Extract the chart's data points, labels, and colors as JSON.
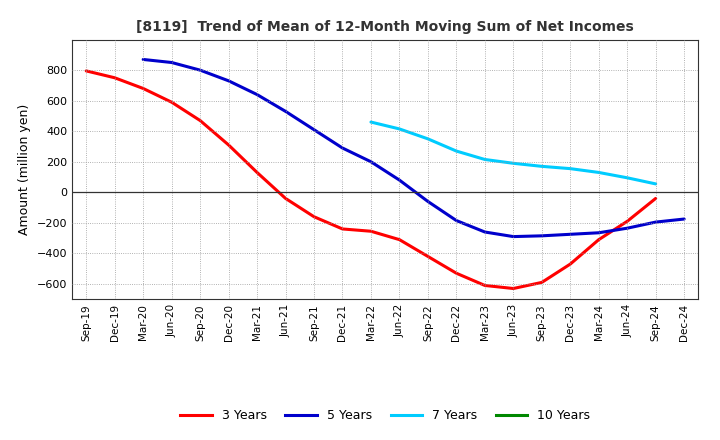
{
  "title": "[8119]  Trend of Mean of 12-Month Moving Sum of Net Incomes",
  "ylabel": "Amount (million yen)",
  "background_color": "#ffffff",
  "grid_color": "#aaaaaa",
  "ylim": [
    -700,
    1000
  ],
  "yticks": [
    -600,
    -400,
    -200,
    0,
    200,
    400,
    600,
    800
  ],
  "x_labels": [
    "Sep-19",
    "Dec-19",
    "Mar-20",
    "Jun-20",
    "Sep-20",
    "Dec-20",
    "Mar-21",
    "Jun-21",
    "Sep-21",
    "Dec-21",
    "Mar-22",
    "Jun-22",
    "Sep-22",
    "Dec-22",
    "Mar-23",
    "Jun-23",
    "Sep-23",
    "Dec-23",
    "Mar-24",
    "Jun-24",
    "Sep-24",
    "Dec-24"
  ],
  "series": {
    "3 Years": {
      "color": "#ff0000",
      "values": [
        795,
        750,
        680,
        590,
        470,
        310,
        130,
        -40,
        -160,
        -240,
        -255,
        -310,
        -420,
        -530,
        -610,
        -630,
        -590,
        -470,
        -310,
        -190,
        -40,
        null
      ]
    },
    "5 Years": {
      "color": "#0000cc",
      "values": [
        null,
        null,
        870,
        850,
        800,
        730,
        640,
        530,
        410,
        290,
        200,
        80,
        -60,
        -185,
        -260,
        -290,
        -285,
        -275,
        -265,
        -235,
        -195,
        -175
      ]
    },
    "7 Years": {
      "color": "#00ccff",
      "values": [
        null,
        null,
        null,
        null,
        null,
        null,
        null,
        null,
        null,
        null,
        460,
        415,
        350,
        270,
        215,
        190,
        170,
        155,
        130,
        95,
        55,
        null
      ]
    },
    "10 Years": {
      "color": "#008800",
      "values": [
        null,
        null,
        null,
        null,
        null,
        null,
        null,
        null,
        null,
        null,
        null,
        null,
        null,
        null,
        null,
        null,
        null,
        null,
        null,
        null,
        null,
        null
      ]
    }
  },
  "legend": {
    "3 Years": "#ff0000",
    "5 Years": "#0000cc",
    "7 Years": "#00ccff",
    "10 Years": "#008800"
  }
}
